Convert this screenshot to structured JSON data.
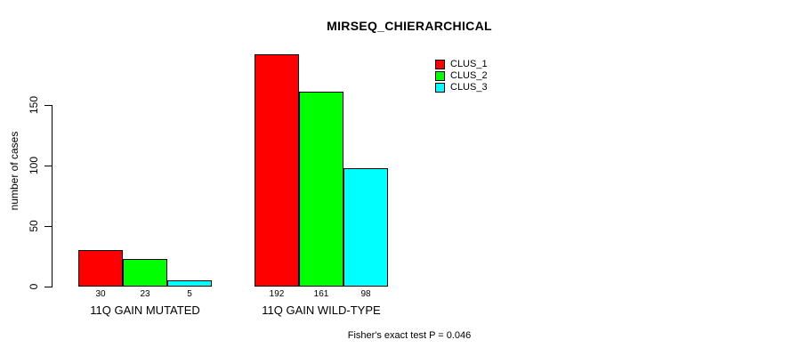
{
  "title": "MIRSEQ_CHIERARCHICAL",
  "chart_data": {
    "type": "bar",
    "title": "MIRSEQ_CHIERARCHICAL",
    "xlabel": "",
    "ylabel": "number of cases",
    "categories": [
      "11Q GAIN MUTATED",
      "11Q GAIN WILD-TYPE"
    ],
    "series": [
      {
        "name": "CLUS_1",
        "color": "#ff0000",
        "values": [
          30,
          192
        ]
      },
      {
        "name": "CLUS_2",
        "color": "#00ff00",
        "values": [
          23,
          161
        ]
      },
      {
        "name": "CLUS_3",
        "color": "#00ffff",
        "values": [
          5,
          98
        ]
      }
    ],
    "value_labels": [
      [
        30,
        23,
        5
      ],
      [
        192,
        161,
        98
      ]
    ],
    "yticks": [
      0,
      50,
      100,
      150
    ],
    "ylim": [
      0,
      195
    ],
    "grid": false,
    "legend_position": "top-right-inside",
    "legend_entries": [
      "CLUS_1",
      "CLUS_2",
      "CLUS_3"
    ],
    "annotation": "Fisher's exact test P = 0.046",
    "bar_border_color": "#000000",
    "axis_color": "#000000",
    "background_color": "#ffffff",
    "text_color": "#000000"
  }
}
